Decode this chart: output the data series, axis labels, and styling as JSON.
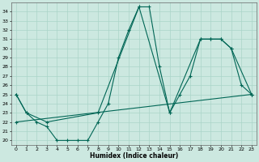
{
  "xlabel": "Humidex (Indice chaleur)",
  "bg_color": "#cce8e0",
  "grid_color": "#aad4c8",
  "line_color": "#006655",
  "xlim": [
    -0.5,
    23.5
  ],
  "ylim": [
    19.5,
    35.0
  ],
  "xticks": [
    0,
    1,
    2,
    3,
    4,
    5,
    6,
    7,
    8,
    9,
    10,
    11,
    12,
    13,
    14,
    15,
    16,
    17,
    18,
    19,
    20,
    21,
    22,
    23
  ],
  "yticks": [
    20,
    21,
    22,
    23,
    24,
    25,
    26,
    27,
    28,
    29,
    30,
    31,
    32,
    33,
    34
  ],
  "line1_x": [
    0,
    1,
    2,
    3,
    4,
    5,
    6,
    7,
    8,
    9,
    10,
    11,
    12,
    13,
    14,
    15,
    16,
    17,
    18,
    19,
    20,
    21,
    22,
    23
  ],
  "line1_y": [
    25,
    23,
    22,
    21.5,
    20,
    20,
    20,
    20,
    22,
    24,
    29,
    32,
    34.5,
    34.5,
    28,
    23,
    25,
    27,
    31,
    31,
    31,
    30,
    26,
    25
  ],
  "line2_x": [
    0,
    1,
    3,
    8,
    12,
    15,
    18,
    19,
    20,
    21,
    23
  ],
  "line2_y": [
    25,
    23,
    22,
    23,
    34.5,
    23,
    31,
    31,
    31,
    30,
    25
  ],
  "line3_x": [
    0,
    23
  ],
  "line3_y": [
    22,
    25
  ]
}
